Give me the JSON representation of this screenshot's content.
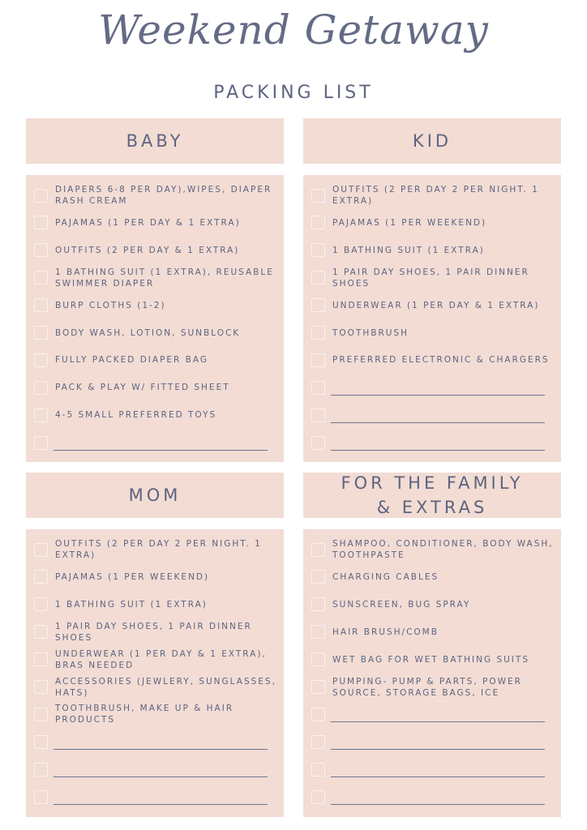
{
  "title": "Weekend Getaway",
  "subtitle": "PACKING LIST",
  "colors": {
    "panel": "#f2dcd4",
    "text": "#5d6480"
  },
  "sections": [
    {
      "id": "baby",
      "heading": "BABY",
      "items": [
        "DIAPERS 6-8 PER DAY),WIPES, DIAPER RASH CREAM",
        "PAJAMAS (1 PER DAY & 1  EXTRA)",
        "OUTFITS (2 PER DAY & 1 EXTRA)",
        "1 BATHING SUIT (1 EXTRA), REUSABLE SWIMMER DIAPER",
        "BURP CLOTHS (1-2)",
        "BODY WASH, LOTION, SUNBLOCK",
        "FULLY PACKED DIAPER BAG",
        "PACK & PLAY W/ FITTED SHEET",
        "4-5 SMALL PREFERRED TOYS",
        ""
      ]
    },
    {
      "id": "kid",
      "heading": "KID",
      "items": [
        "OUTFITS (2 PER DAY 2 PER NIGHT. 1 EXTRA)",
        "PAJAMAS (1 PER WEEKEND)",
        "1 BATHING SUIT (1 EXTRA)",
        "1 PAIR DAY SHOES, 1 PAIR DINNER SHOES",
        "UNDERWEAR (1 PER DAY & 1 EXTRA)",
        "TOOTHBRUSH",
        "PREFERRED ELECTRONIC & CHARGERS",
        "",
        "",
        ""
      ]
    },
    {
      "id": "mom",
      "heading": "MOM",
      "items": [
        "OUTFITS (2 PER DAY 2 PER NIGHT. 1 EXTRA)",
        "PAJAMAS (1 PER WEEKEND)",
        "1 BATHING SUIT (1 EXTRA)",
        "1 PAIR DAY SHOES, 1 PAIR DINNER SHOES",
        "UNDERWEAR (1 PER DAY & 1 EXTRA), BRAS NEEDED",
        "ACCESSORIES (JEWLERY, SUNGLASSES, HATS)",
        "TOOTHBRUSH, MAKE UP & HAIR PRODUCTS",
        "",
        "",
        ""
      ]
    },
    {
      "id": "family",
      "heading": "FOR THE FAMILY & EXTRAS",
      "items": [
        "SHAMPOO, CONDITIONER, BODY WASH, TOOTHPASTE",
        "CHARGING CABLES",
        "SUNSCREEN, BUG SPRAY",
        "HAIR BRUSH/COMB",
        "WET BAG FOR WET BATHING SUITS",
        "PUMPING- PUMP & PARTS, POWER SOURCE, STORAGE BAGS, ICE",
        "",
        "",
        "",
        ""
      ]
    }
  ]
}
